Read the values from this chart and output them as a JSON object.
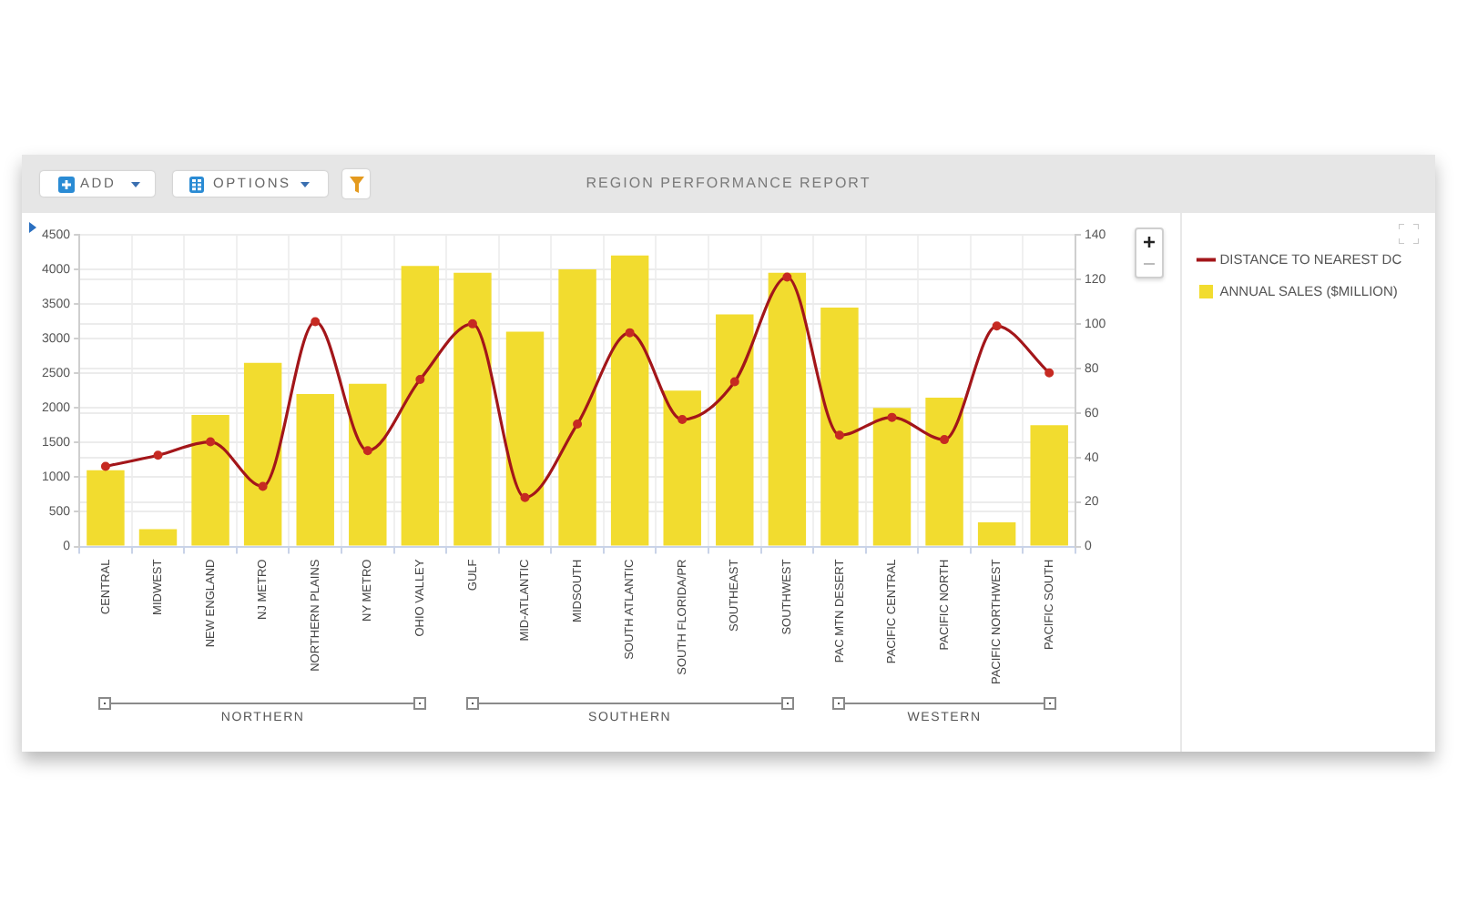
{
  "chart_data": {
    "type": "bar",
    "title": "REGION PERFORMANCE REPORT",
    "categories": [
      "CENTRAL",
      "MIDWEST",
      "NEW ENGLAND",
      "NJ METRO",
      "NORTHERN PLAINS",
      "NY METRO",
      "OHIO VALLEY",
      "GULF",
      "MID-ATLANTIC",
      "MIDSOUTH",
      "SOUTH ATLANTIC",
      "SOUTH FLORIDA/PR",
      "SOUTHEAST",
      "SOUTHWEST",
      "PAC MTN DESERT",
      "PACIFIC CENTRAL",
      "PACIFIC NORTH",
      "PACIFIC NORTHWEST",
      "PACIFIC SOUTH"
    ],
    "series": [
      {
        "name": "DISTANCE TO NEAREST DC",
        "type": "line",
        "axis": "y2",
        "color": "#a3161a",
        "values": [
          36,
          41,
          47,
          27,
          101,
          43,
          75,
          100,
          22,
          55,
          96,
          57,
          74,
          121,
          50,
          58,
          48,
          99,
          78
        ]
      },
      {
        "name": "ANNUAL SALES ($MILLION)",
        "color": "#f2dc2f",
        "values": [
          1100,
          250,
          1900,
          2650,
          2200,
          2350,
          4050,
          3950,
          3100,
          4000,
          4200,
          2250,
          3350,
          3950,
          3450,
          2000,
          2150,
          350,
          1750
        ]
      }
    ],
    "ylim": [
      0,
      4500
    ],
    "yticks": [
      0,
      500,
      1000,
      1500,
      2000,
      2500,
      3000,
      3500,
      4000,
      4500
    ],
    "y2lim": [
      0,
      140
    ],
    "y2ticks": [
      0,
      20,
      40,
      60,
      80,
      100,
      120,
      140
    ],
    "grid": true,
    "legend": "right",
    "marker": "circle",
    "annotations": [
      "ADD",
      "OPTIONS",
      "NORTHERN",
      "SOUTHERN",
      "WESTERN"
    ]
  }
}
